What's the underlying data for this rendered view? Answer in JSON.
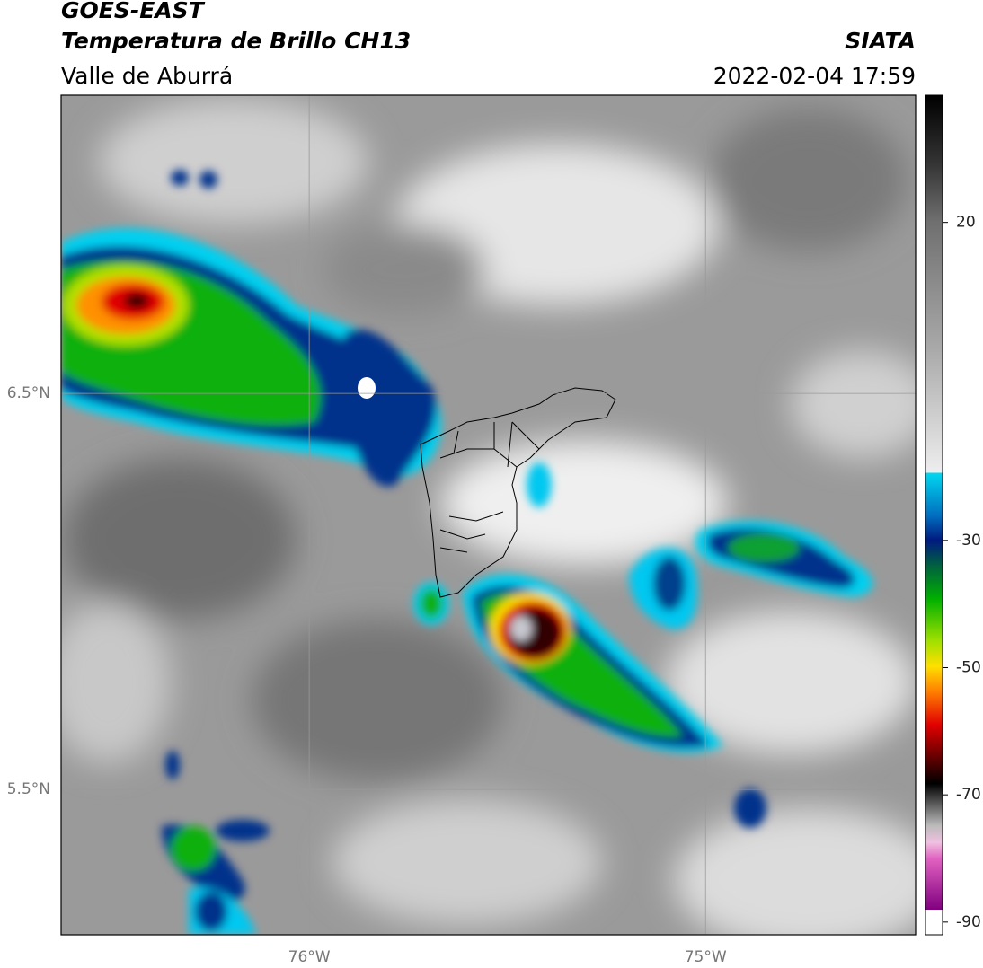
{
  "header": {
    "title": "GOES-EAST",
    "subtitle": "Temperatura de Brillo CH13",
    "region": "Valle de Aburrá",
    "source": "SIATA",
    "timestamp": "2022-02-04 17:59"
  },
  "map": {
    "xlim": [
      -76.626,
      -74.47
    ],
    "ylim": [
      5.133,
      7.253
    ],
    "xticks": [
      {
        "value": -76,
        "label": "76°W"
      },
      {
        "value": -75,
        "label": "75°W"
      }
    ],
    "yticks": [
      {
        "value": 6.5,
        "label": "6.5°N"
      },
      {
        "value": 5.5,
        "label": "5.5°N"
      }
    ],
    "grid": true
  },
  "colorbar": {
    "lim": [
      -92,
      40
    ],
    "ticks": [
      20,
      -30,
      -50,
      -70,
      -90
    ]
  }
}
